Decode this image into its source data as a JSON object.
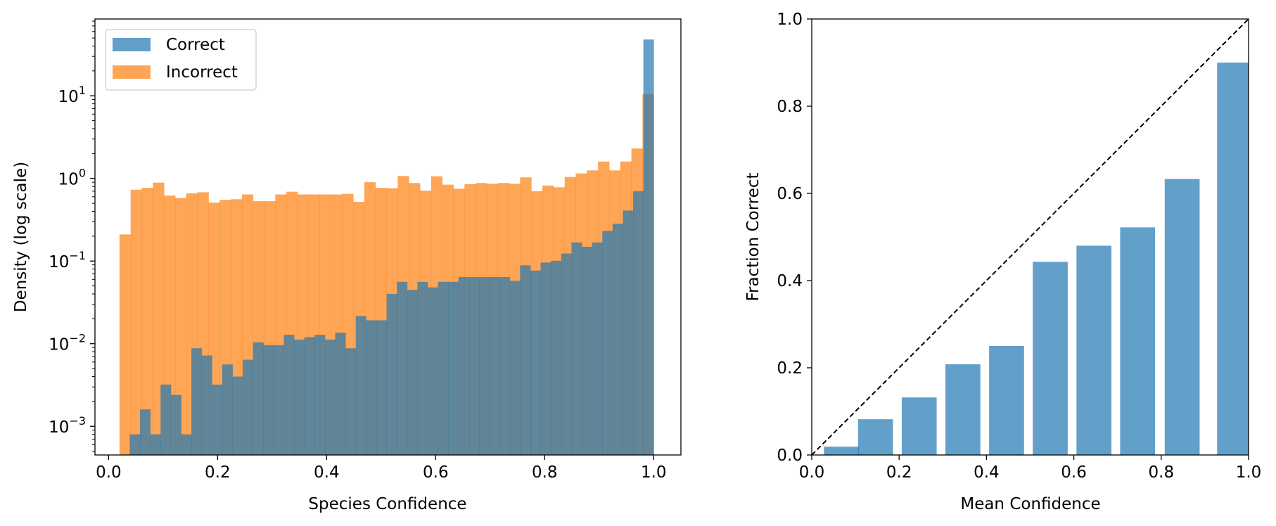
{
  "chart_data": [
    {
      "type": "histogram",
      "xlabel": "Species Confidence",
      "ylabel": "Density (log scale)",
      "yscale": "log",
      "xlim": [
        -0.025,
        1.05
      ],
      "ylim": [
        0.00045,
        85
      ],
      "xticks": [
        "0.0",
        "0.2",
        "0.4",
        "0.6",
        "0.8",
        "1.0"
      ],
      "yticks": [
        {
          "base": "10",
          "exp": "1"
        },
        {
          "base": "10",
          "exp": "0"
        },
        {
          "base": "10",
          "exp": "−1"
        },
        {
          "base": "10",
          "exp": "−2"
        },
        {
          "base": "10",
          "exp": "−3"
        }
      ],
      "legend": {
        "placement": "upper-left",
        "entries": [
          "Correct",
          "Incorrect"
        ]
      },
      "grid": false,
      "bin_start": 0.02,
      "bin_width": 0.0196,
      "series": [
        {
          "name": "Correct",
          "color": "#1f77b4",
          "alpha": 0.7,
          "values": [
            0,
            0.0008,
            0.0016,
            0.0008,
            0.0032,
            0.0024,
            0.0008,
            0.0088,
            0.0072,
            0.0032,
            0.0056,
            0.004,
            0.0064,
            0.0104,
            0.0096,
            0.0096,
            0.0128,
            0.0112,
            0.012,
            0.0128,
            0.0112,
            0.0136,
            0.0088,
            0.0216,
            0.0192,
            0.0192,
            0.04,
            0.056,
            0.0448,
            0.056,
            0.048,
            0.056,
            0.056,
            0.064,
            0.064,
            0.064,
            0.064,
            0.064,
            0.0576,
            0.0888,
            0.0768,
            0.096,
            0.1008,
            0.1232,
            0.168,
            0.1488,
            0.168,
            0.232,
            0.2824,
            0.408,
            0.7,
            48.0
          ]
        },
        {
          "name": "Incorrect",
          "color": "#ff7f0e",
          "alpha": 0.7,
          "values": [
            0.21,
            0.73,
            0.77,
            0.89,
            0.62,
            0.58,
            0.66,
            0.68,
            0.51,
            0.55,
            0.56,
            0.64,
            0.53,
            0.53,
            0.64,
            0.69,
            0.64,
            0.64,
            0.64,
            0.64,
            0.65,
            0.52,
            0.9,
            0.77,
            0.76,
            1.07,
            0.88,
            0.71,
            1.06,
            0.84,
            0.75,
            0.85,
            0.88,
            0.86,
            0.88,
            0.86,
            1.03,
            0.7,
            0.82,
            0.78,
            1.04,
            1.15,
            1.25,
            1.6,
            1.25,
            1.6,
            2.3,
            10.5
          ]
        }
      ]
    },
    {
      "type": "bar",
      "xlabel": "Mean Confidence",
      "ylabel": "Fraction Correct",
      "xlim": [
        0.0,
        1.0
      ],
      "ylim": [
        0.0,
        1.0
      ],
      "xticks": [
        "0.0",
        "0.2",
        "0.4",
        "0.6",
        "0.8",
        "1.0"
      ],
      "yticks": [
        "0.0",
        "0.2",
        "0.4",
        "0.6",
        "0.8",
        "1.0"
      ],
      "grid": false,
      "reference_line": "diagonal dashed y = x",
      "series": [
        {
          "color": "#1f77b4",
          "alpha": 0.7,
          "x": [
            0.068,
            0.146,
            0.246,
            0.346,
            0.446,
            0.546,
            0.646,
            0.746,
            0.848,
            0.968
          ],
          "values": [
            0.019,
            0.082,
            0.132,
            0.208,
            0.25,
            0.443,
            0.48,
            0.522,
            0.633,
            0.9
          ]
        }
      ]
    }
  ]
}
